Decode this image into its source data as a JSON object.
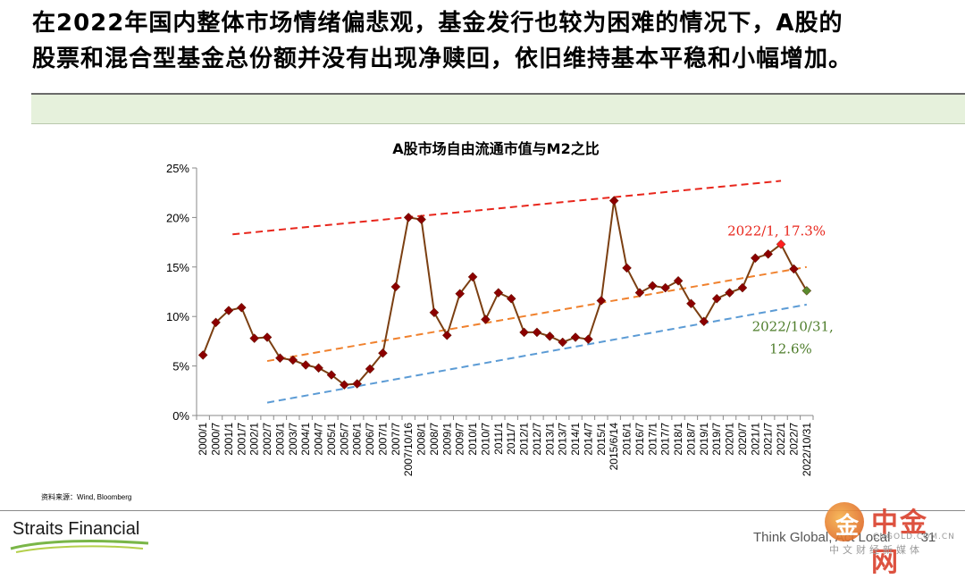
{
  "slide": {
    "headline_line1": "在2022年国内整体市场情绪偏悲观，基金发行也较为困难的情况下，A股的",
    "headline_line2": "股票和混合型基金总份额并没有出现净赎回，依旧维持基本平稳和小幅增加。",
    "source_note": "资料来源：Wind, Bloomberg",
    "brand": "Straits Financial",
    "tagline": "Think Global, Act Local",
    "page_number": "31",
    "watermark": {
      "glyph": "金",
      "name": "中金网",
      "url": "CNGOLD.COM.CN",
      "subtitle": "中文财经新媒体"
    }
  },
  "chart_data": {
    "type": "line",
    "title": "A股市场自由流通市值与M2之比",
    "xlabel": "",
    "ylabel": "",
    "ylim": [
      0,
      25
    ],
    "yticks": [
      0,
      5,
      10,
      15,
      20,
      25
    ],
    "ytick_labels": [
      "0%",
      "5%",
      "10%",
      "15%",
      "20%",
      "25%"
    ],
    "categories": [
      "2000/1",
      "2000/7",
      "2001/1",
      "2001/7",
      "2002/1",
      "2002/7",
      "2003/1",
      "2003/7",
      "2004/1",
      "2004/7",
      "2005/1",
      "2005/7",
      "2006/1",
      "2006/7",
      "2007/1",
      "2007/7",
      "2007/10/16",
      "2008/1",
      "2008/7",
      "2009/1",
      "2009/7",
      "2010/1",
      "2010/7",
      "2011/1",
      "2011/7",
      "2012/1",
      "2012/7",
      "2013/1",
      "2013/7",
      "2014/1",
      "2014/7",
      "2015/1",
      "2015/6/14",
      "2016/1",
      "2016/7",
      "2017/1",
      "2017/7",
      "2018/1",
      "2018/7",
      "2019/1",
      "2019/7",
      "2020/1",
      "2020/7",
      "2021/1",
      "2021/7",
      "2022/1",
      "2022/7",
      "2022/10/31"
    ],
    "series": [
      {
        "name": "",
        "color": "#7b3f12",
        "marker_color": "#8b0000",
        "values": [
          6.1,
          9.4,
          10.6,
          10.9,
          7.8,
          7.9,
          5.8,
          5.6,
          5.1,
          4.8,
          4.1,
          3.1,
          3.2,
          4.7,
          6.3,
          13.0,
          20.0,
          19.8,
          10.4,
          8.1,
          12.3,
          14.0,
          9.7,
          12.4,
          11.8,
          8.4,
          8.4,
          8.0,
          7.4,
          7.9,
          7.7,
          11.6,
          21.7,
          14.9,
          12.4,
          13.1,
          12.9,
          13.6,
          11.3,
          9.5,
          11.8,
          12.4,
          12.9,
          15.9,
          16.3,
          17.3,
          14.8,
          12.6
        ]
      }
    ],
    "trend_lines": [
      {
        "color": "#e8261c",
        "from": {
          "x": 2.3,
          "y": 18.3
        },
        "to": {
          "x": 45.0,
          "y": 23.7
        }
      },
      {
        "color": "#f0812d",
        "from": {
          "x": 5.0,
          "y": 5.5
        },
        "to": {
          "x": 47.0,
          "y": 15.0
        }
      },
      {
        "color": "#5b9bd5",
        "from": {
          "x": 5.0,
          "y": 1.3
        },
        "to": {
          "x": 47.0,
          "y": 11.2
        }
      }
    ],
    "annotations": [
      {
        "index": 45,
        "text": "2022/1, 17.3%",
        "color": "#e8261c",
        "marker_color": "#ff2020"
      },
      {
        "index": 47,
        "text_line1": "2022/10/31,",
        "text_line2": "12.6%",
        "color": "#4e7d2b",
        "marker_color": "#5a8a2e"
      }
    ],
    "grid": false,
    "legend": "none"
  }
}
